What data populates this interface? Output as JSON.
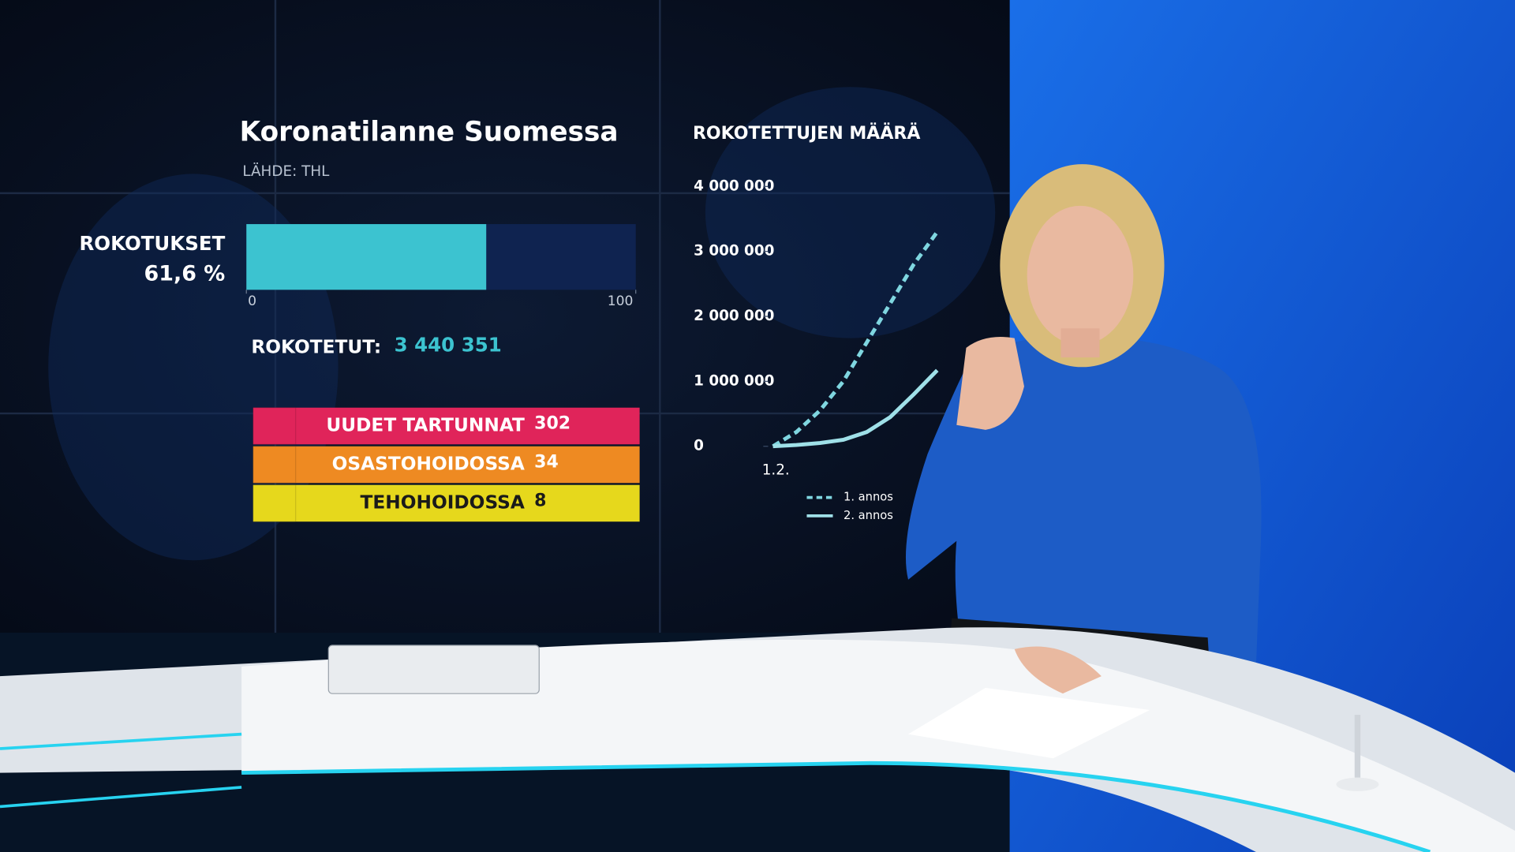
{
  "panel": {
    "title": "Koronatilanne Suomessa",
    "source": "LÄHDE: THL",
    "vaccinations": {
      "label": "ROKOTUKSET",
      "value": 61.6,
      "value_label": "61,6 %",
      "color": "#3cc3d0",
      "xlim": [
        0,
        100
      ],
      "xticks": [
        0,
        100
      ]
    },
    "vaccinated": {
      "label": "ROKOTETUT:",
      "value": 3440351,
      "value_label": "3 440 351"
    },
    "stats": [
      {
        "label": "UUDET TARTUNNAT",
        "value": 302,
        "color": "#e0245a"
      },
      {
        "label": "OSASTOHOIDOSSA",
        "value": 34,
        "color": "#ee8a22"
      },
      {
        "label": "TEHOHOIDOSSA",
        "value": 8,
        "color": "#e6d81c"
      }
    ]
  },
  "chart_data": {
    "type": "line",
    "title": "ROKOTETTUJEN MÄÄRÄ",
    "x": [
      "1.2.",
      null,
      null,
      null,
      null,
      null,
      null,
      null
    ],
    "series": [
      {
        "name": "1. annos",
        "color": "#7fd6e0",
        "dashed": true,
        "values": [
          0,
          220000,
          550000,
          1000000,
          1600000,
          2200000,
          2800000,
          3300000
        ]
      },
      {
        "name": "2. annos",
        "color": "#9fe0e8",
        "dashed": false,
        "values": [
          0,
          20000,
          50000,
          100000,
          220000,
          450000,
          800000,
          1170000
        ]
      }
    ],
    "ylim": [
      0,
      4000000
    ],
    "yticks": [
      0,
      {
        "value": 1000000,
        "label": "1 000 000"
      },
      {
        "value": 2000000,
        "label": "2 000 000"
      },
      {
        "value": 3000000,
        "label": "3 000 000"
      },
      {
        "value": 4000000,
        "label": "4 000 000"
      }
    ],
    "grid": false
  }
}
